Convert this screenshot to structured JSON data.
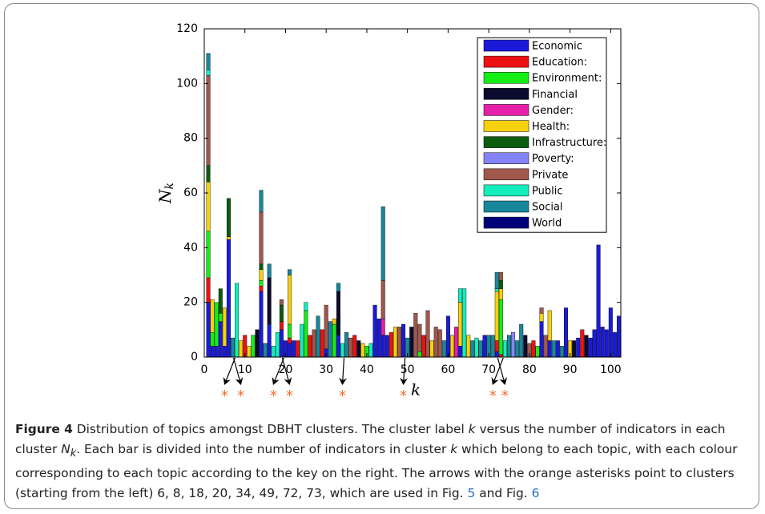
{
  "chart_data": {
    "type": "stacked_bar",
    "x": [
      1,
      2,
      3,
      4,
      5,
      6,
      7,
      8,
      9,
      10,
      11,
      12,
      13,
      14,
      15,
      16,
      17,
      18,
      19,
      20,
      21,
      22,
      23,
      24,
      25,
      26,
      27,
      28,
      29,
      30,
      31,
      32,
      33,
      34,
      35,
      36,
      37,
      38,
      39,
      40,
      41,
      42,
      43,
      44,
      45,
      46,
      47,
      48,
      49,
      50,
      51,
      52,
      53,
      54,
      55,
      56,
      57,
      58,
      59,
      60,
      61,
      62,
      63,
      64,
      65,
      66,
      67,
      68,
      69,
      70,
      71,
      72,
      73,
      74,
      75,
      76,
      77,
      78,
      79,
      80,
      81,
      82,
      83,
      84,
      85,
      86,
      87,
      88,
      89,
      90,
      91,
      92,
      93,
      94,
      95,
      96,
      97,
      98,
      99,
      100,
      101,
      102
    ],
    "xlim": [
      0,
      102.5
    ],
    "xticks": [
      0,
      10,
      20,
      30,
      40,
      50,
      60,
      70,
      80,
      90,
      100
    ],
    "ylim": [
      0,
      120
    ],
    "yticks": [
      0,
      20,
      40,
      60,
      80,
      100,
      120
    ],
    "xlabel": "k",
    "ylabel": "N",
    "ylabel_sub": "k",
    "legend_position": "upper right",
    "series": [
      {
        "name": "Economic",
        "color": "#1a1ad8",
        "values": [
          20,
          4,
          4,
          13,
          4,
          43,
          0,
          0,
          0,
          0,
          0,
          0,
          0,
          24,
          0,
          12,
          0,
          0,
          10,
          6,
          5,
          6,
          0,
          0,
          0,
          0,
          0,
          0,
          0,
          3,
          0,
          0,
          8,
          0,
          0,
          0,
          0,
          0,
          0,
          0,
          0,
          19,
          14,
          8,
          8,
          0,
          0,
          0,
          12,
          0,
          0,
          0,
          0,
          0,
          0,
          0,
          0,
          0,
          0,
          15,
          0,
          0,
          4,
          0,
          0,
          0,
          0,
          0,
          8,
          0,
          0,
          2,
          0,
          0,
          0,
          0,
          0,
          0,
          0,
          0,
          0,
          0,
          13,
          0,
          6,
          0,
          6,
          0,
          18,
          0,
          0,
          7,
          0,
          0,
          7,
          10,
          41,
          11,
          10,
          18,
          9,
          15
        ]
      },
      {
        "name": "Education:",
        "color": "#ee1111",
        "values": [
          9,
          0,
          0,
          0,
          0,
          0,
          0,
          0,
          0,
          8,
          0,
          0,
          0,
          2,
          0,
          0,
          0,
          0,
          3,
          0,
          2,
          0,
          6,
          0,
          0,
          8,
          0,
          0,
          10,
          0,
          0,
          0,
          0,
          0,
          0,
          0,
          8,
          0,
          0,
          0,
          0,
          0,
          0,
          0,
          0,
          9,
          0,
          0,
          0,
          0,
          0,
          0,
          0,
          8,
          0,
          0,
          0,
          0,
          0,
          0,
          0,
          0,
          0,
          0,
          0,
          0,
          0,
          0,
          0,
          0,
          0,
          4,
          1,
          0,
          0,
          0,
          0,
          0,
          0,
          0,
          6,
          0,
          0,
          0,
          0,
          0,
          0,
          0,
          0,
          0,
          0,
          0,
          10,
          0,
          0,
          0,
          0,
          0,
          0,
          0,
          0,
          0
        ]
      },
      {
        "name": "Environment:",
        "color": "#15ee15",
        "values": [
          17,
          5,
          16,
          3,
          0,
          0,
          0,
          0,
          0,
          0,
          0,
          8,
          0,
          2,
          0,
          0,
          0,
          0,
          0,
          0,
          5,
          0,
          0,
          0,
          17,
          0,
          0,
          0,
          0,
          0,
          0,
          12,
          0,
          0,
          0,
          0,
          0,
          0,
          0,
          4,
          0,
          0,
          0,
          0,
          0,
          0,
          0,
          0,
          0,
          0,
          0,
          0,
          2,
          0,
          0,
          0,
          0,
          0,
          0,
          0,
          0,
          0,
          0,
          0,
          0,
          0,
          0,
          0,
          0,
          0,
          0,
          0,
          20,
          0,
          0,
          0,
          0,
          0,
          0,
          0,
          0,
          4,
          0,
          0,
          0,
          0,
          0,
          0,
          0,
          0,
          0,
          0,
          0,
          0,
          0,
          0,
          0,
          0,
          0,
          0,
          0,
          0
        ]
      },
      {
        "name": "Financial",
        "color": "#0b0b2e",
        "values": [
          0,
          0,
          0,
          0,
          0,
          0,
          0,
          0,
          0,
          0,
          0,
          0,
          10,
          0,
          0,
          17,
          0,
          0,
          0,
          0,
          0,
          0,
          0,
          0,
          0,
          0,
          0,
          0,
          0,
          0,
          0,
          0,
          16,
          0,
          0,
          0,
          0,
          6,
          0,
          0,
          0,
          0,
          0,
          0,
          0,
          0,
          0,
          0,
          0,
          0,
          11,
          0,
          0,
          0,
          0,
          0,
          0,
          0,
          0,
          0,
          0,
          0,
          0,
          0,
          0,
          0,
          0,
          0,
          0,
          0,
          0,
          0,
          0,
          0,
          0,
          0,
          0,
          0,
          8,
          0,
          0,
          0,
          0,
          0,
          0,
          0,
          0,
          0,
          0,
          0,
          6,
          0,
          0,
          8,
          0,
          0,
          0,
          0,
          0,
          0,
          0,
          0
        ]
      },
      {
        "name": "Gender:",
        "color": "#e61fa8",
        "values": [
          0,
          0,
          0,
          0,
          0,
          0,
          0,
          0,
          0,
          0,
          0,
          0,
          0,
          0,
          0,
          0,
          0,
          0,
          0,
          0,
          0,
          0,
          0,
          0,
          0,
          0,
          0,
          0,
          0,
          0,
          0,
          0,
          0,
          0,
          0,
          0,
          0,
          0,
          0,
          0,
          0,
          0,
          0,
          6,
          0,
          0,
          0,
          0,
          0,
          0,
          0,
          0,
          0,
          0,
          0,
          0,
          0,
          0,
          0,
          0,
          0,
          11,
          0,
          0,
          0,
          0,
          0,
          0,
          0,
          0,
          0,
          0,
          0,
          0,
          0,
          0,
          0,
          0,
          0,
          0,
          0,
          0,
          0,
          0,
          0,
          0,
          0,
          0,
          0,
          0,
          0,
          0,
          0,
          0,
          0,
          0,
          0,
          0,
          0,
          0,
          0,
          0
        ]
      },
      {
        "name": "Health:",
        "color": "#f7d10e",
        "values": [
          18,
          12,
          0,
          0,
          14,
          1,
          0,
          0,
          6,
          0,
          4,
          0,
          0,
          4,
          0,
          0,
          0,
          0,
          0,
          0,
          18,
          0,
          0,
          0,
          0,
          0,
          0,
          0,
          0,
          0,
          0,
          2,
          0,
          0,
          0,
          0,
          0,
          0,
          5,
          0,
          0,
          0,
          0,
          0,
          0,
          0,
          11,
          0,
          0,
          0,
          0,
          0,
          0,
          0,
          0,
          6,
          0,
          0,
          0,
          0,
          8,
          0,
          16,
          0,
          8,
          0,
          0,
          0,
          0,
          0,
          0,
          18,
          4,
          0,
          0,
          0,
          0,
          0,
          0,
          0,
          0,
          0,
          3,
          0,
          11,
          0,
          0,
          0,
          0,
          6,
          0,
          0,
          0,
          0,
          0,
          0,
          0,
          0,
          0,
          0,
          0,
          0
        ]
      },
      {
        "name": "Infrastructure:",
        "color": "#0c5c10",
        "values": [
          6,
          0,
          0,
          9,
          0,
          14,
          0,
          0,
          0,
          0,
          0,
          0,
          0,
          2,
          0,
          0,
          0,
          0,
          6,
          0,
          0,
          0,
          0,
          0,
          0,
          0,
          0,
          0,
          0,
          0,
          0,
          0,
          0,
          0,
          0,
          0,
          0,
          0,
          0,
          0,
          0,
          0,
          0,
          0,
          0,
          0,
          0,
          0,
          0,
          0,
          0,
          0,
          0,
          0,
          0,
          0,
          0,
          0,
          0,
          0,
          0,
          0,
          0,
          0,
          0,
          0,
          0,
          0,
          0,
          0,
          0,
          0,
          3,
          0,
          0,
          0,
          0,
          0,
          0,
          0,
          0,
          0,
          0,
          0,
          0,
          0,
          0,
          0,
          0,
          0,
          0,
          0,
          0,
          0,
          0,
          0,
          0,
          0,
          0,
          0,
          0,
          0
        ]
      },
      {
        "name": "Poverty:",
        "color": "#8484f8",
        "values": [
          0,
          0,
          0,
          0,
          0,
          0,
          0,
          0,
          0,
          0,
          0,
          0,
          0,
          0,
          0,
          0,
          0,
          0,
          0,
          0,
          0,
          0,
          0,
          0,
          0,
          0,
          0,
          0,
          0,
          0,
          0,
          0,
          0,
          0,
          0,
          0,
          0,
          0,
          0,
          0,
          0,
          0,
          0,
          0,
          0,
          0,
          0,
          0,
          0,
          0,
          0,
          0,
          0,
          0,
          0,
          0,
          0,
          0,
          0,
          0,
          0,
          0,
          0,
          0,
          0,
          0,
          0,
          0,
          0,
          0,
          0,
          0,
          0,
          0,
          0,
          9,
          0,
          0,
          0,
          0,
          0,
          0,
          0,
          0,
          0,
          0,
          0,
          0,
          0,
          0,
          0,
          0,
          0,
          0,
          0,
          0,
          0,
          0,
          0,
          0,
          0,
          0
        ]
      },
      {
        "name": "Private",
        "color": "#a0574c",
        "values": [
          33,
          0,
          0,
          0,
          0,
          0,
          0,
          0,
          0,
          0,
          0,
          0,
          0,
          19,
          0,
          0,
          0,
          0,
          2,
          0,
          0,
          0,
          0,
          0,
          0,
          0,
          10,
          0,
          0,
          16,
          0,
          0,
          0,
          0,
          0,
          7,
          0,
          0,
          0,
          0,
          0,
          0,
          0,
          14,
          0,
          0,
          0,
          11,
          0,
          0,
          0,
          16,
          10,
          0,
          17,
          0,
          11,
          10,
          0,
          0,
          0,
          0,
          0,
          0,
          0,
          0,
          0,
          0,
          0,
          0,
          0,
          0,
          3,
          0,
          0,
          0,
          0,
          0,
          0,
          5,
          0,
          0,
          2,
          8,
          0,
          0,
          0,
          0,
          0,
          0,
          0,
          0,
          0,
          0,
          0,
          0,
          0,
          0,
          0,
          0,
          0,
          0
        ]
      },
      {
        "name": "Public",
        "color": "#14eebc",
        "values": [
          2,
          0,
          0,
          0,
          0,
          0,
          0,
          27,
          0,
          0,
          0,
          0,
          0,
          0,
          0,
          0,
          4,
          9,
          0,
          0,
          0,
          0,
          0,
          12,
          3,
          0,
          0,
          0,
          0,
          0,
          0,
          0,
          0,
          5,
          0,
          0,
          0,
          0,
          0,
          0,
          5,
          0,
          0,
          0,
          0,
          0,
          0,
          0,
          0,
          0,
          0,
          0,
          0,
          0,
          0,
          0,
          0,
          0,
          0,
          0,
          0,
          0,
          5,
          25,
          0,
          0,
          7,
          0,
          0,
          0,
          0,
          1,
          0,
          6,
          0,
          0,
          0,
          0,
          0,
          0,
          0,
          0,
          0,
          0,
          0,
          0,
          0,
          0,
          0,
          0,
          0,
          0,
          0,
          0,
          0,
          0,
          0,
          0,
          0,
          0,
          0,
          0
        ]
      },
      {
        "name": "Social",
        "color": "#19879b",
        "values": [
          6,
          0,
          0,
          0,
          0,
          0,
          7,
          0,
          0,
          0,
          0,
          0,
          0,
          8,
          5,
          5,
          0,
          0,
          0,
          0,
          2,
          0,
          0,
          0,
          0,
          0,
          0,
          15,
          0,
          0,
          13,
          0,
          3,
          0,
          9,
          0,
          0,
          0,
          0,
          0,
          0,
          0,
          0,
          27,
          0,
          0,
          0,
          0,
          0,
          7,
          0,
          0,
          0,
          0,
          0,
          0,
          0,
          0,
          6,
          0,
          0,
          0,
          0,
          0,
          0,
          6,
          0,
          6,
          0,
          8,
          8,
          6,
          0,
          0,
          8,
          0,
          6,
          12,
          0,
          0,
          0,
          0,
          0,
          0,
          0,
          6,
          0,
          4,
          0,
          0,
          0,
          0,
          0,
          0,
          0,
          0,
          0,
          0,
          0,
          0,
          0,
          0
        ]
      },
      {
        "name": "World",
        "color": "#00007a",
        "values": [
          0,
          0,
          0,
          0,
          0,
          0,
          0,
          0,
          0,
          0,
          0,
          0,
          0,
          0,
          0,
          0,
          0,
          0,
          0,
          0,
          0,
          0,
          0,
          0,
          0,
          0,
          0,
          0,
          0,
          0,
          0,
          0,
          0,
          0,
          0,
          0,
          0,
          0,
          0,
          0,
          0,
          0,
          0,
          0,
          0,
          0,
          0,
          0,
          0,
          0,
          0,
          0,
          0,
          0,
          0,
          0,
          0,
          0,
          0,
          0,
          0,
          0,
          0,
          0,
          0,
          0,
          0,
          0,
          0,
          0,
          0,
          0,
          0,
          0,
          0,
          0,
          0,
          0,
          0,
          0,
          0,
          0,
          0,
          0,
          0,
          0,
          0,
          0,
          0,
          0,
          0,
          0,
          0,
          0,
          0,
          0,
          0,
          0,
          0,
          0,
          0,
          0
        ]
      }
    ],
    "highlighted_clusters": [
      6,
      8,
      18,
      20,
      34,
      49,
      72,
      73
    ],
    "highlight_marker": "*",
    "highlight_color": "#f26b2a"
  },
  "caption": {
    "label": "Figure 4",
    "parts": [
      " Distribution of topics amongst DBHT clusters. The cluster label ",
      "k",
      " versus the number of indicators in each cluster ",
      "N",
      "k",
      ". Each bar is divided into the number of indicators in cluster ",
      "k",
      " which belong to each topic, with each colour corresponding to each topic according to the key on the right. The arrows with the orange asterisks point to clusters (starting from the left) 6, 8, 18, 20, 34, 49, 72, 73, which are used in Fig. ",
      "5",
      " and Fig. ",
      "6"
    ]
  }
}
